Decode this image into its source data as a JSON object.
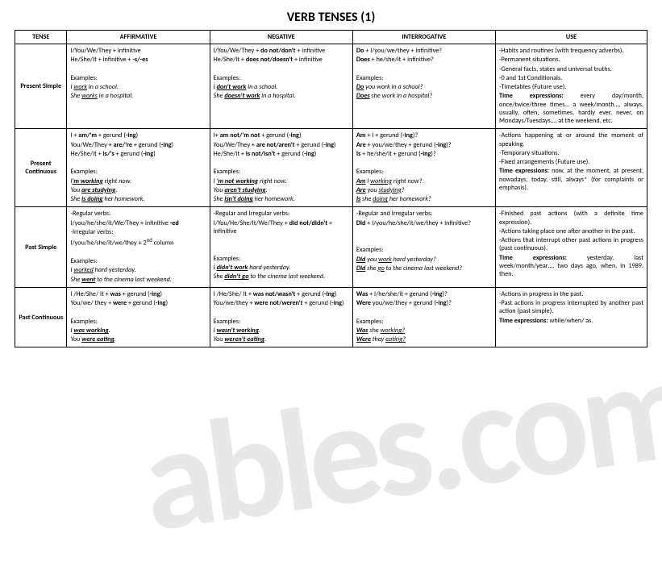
{
  "title": "VERB TENSES (1)",
  "watermark": "ables.com",
  "headers": [
    "TENSE",
    "AFFIRMATIVE",
    "NEGATIVE",
    "INTERROGATIVE",
    "USE"
  ],
  "rows": [
    {
      "tense": "Present Simple",
      "aff": {
        "l1a": "I/You/We/They + infinitive",
        "l2a": "He/She/It + infinitive + ",
        "l2b": "-s/-es",
        "ex": "Examples:",
        "e1a": "I ",
        "e1b": "work",
        "e1c": " in a school.",
        "e2a": "She ",
        "e2b": "works",
        "e2c": " in a hospital."
      },
      "neg": {
        "l1a": "I/You/We/They + ",
        "l1b": "do not/don't",
        "l1c": " + infinitive",
        "l2a": "He/She/It + ",
        "l2b": "does not/doesn't",
        "l2c": " + infinitive",
        "ex": "Examples:",
        "e1a": "I ",
        "e1b": "don't work",
        "e1c": " in a school.",
        "e2a": "She ",
        "e2b": "doesn't work",
        "e2c": " in a hospital."
      },
      "int": {
        "l1a": "Do",
        "l1b": " + I/you/we/they + infinitive?",
        "l2a": "Does",
        "l2b": " + he/she/it + infinitive?",
        "ex": "Examples:",
        "e1a": "Do",
        "e1b": " you work in a school?",
        "e2a": "Does",
        "e2b": " she work in a hospital?"
      },
      "use": {
        "u1": "-Habits and routines (with frequency adverbs).",
        "u2": "-Permanent situations.",
        "u3": "-General facts, states and universal truths.",
        "u4": "-0 and 1st Conditionals.",
        "u5": "-Timetables (Future use).",
        "t1": "Time expressions:",
        "t2": " every day/month, once/twice/three times… a week/month…, always, usually, often, sometimes, hardly ever, never, on Mondays/Tuesdays…, at the weekend, etc."
      }
    },
    {
      "tense": "Present Continuous",
      "aff": {
        "l1a": "I + ",
        "l1b": "am/'m",
        "l1c": " + gerund (",
        "l1d": "-ing",
        "l1e": ")",
        "l2a": "You/We/They + ",
        "l2b": "are/'re",
        "l2c": " + gerund (",
        "l2d": "-ing",
        "l2e": ")",
        "l3a": "He/She/It + ",
        "l3b": "is/'s",
        "l3c": " + gerund (",
        "l3d": "-ing",
        "l3e": ")",
        "ex": "Examples:",
        "e1a": "I",
        "e1b": "'m working",
        "e1c": " right now.",
        "e2a": "You ",
        "e2b": "are studying",
        "e2c": ".",
        "e3a": "She ",
        "e3b": "is doing",
        "e3c": " her homework."
      },
      "neg": {
        "l1a": "I+ ",
        "l1b": "am not/'m not",
        "l1c": " + gerund (",
        "l1d": "-ing",
        "l1e": ")",
        "l2a": "You/We/They + ",
        "l2b": "are  not/aren't",
        "l2c": " + gerund (",
        "l2d": "-ing",
        "l2e": ")",
        "l3a": "He/She/It + ",
        "l3b": "is not/isn't",
        "l3c": " + gerund (",
        "l3d": "-ing",
        "l3e": ")",
        "ex": "Examples:",
        "e1a": "I ",
        "e1b": "'m not working",
        "e1c": " right now.",
        "e2a": "You ",
        "e2b": "aren't studying",
        "e2c": ".",
        "e3a": "She ",
        "e3b": "isn't doing",
        "e3c": " her homework."
      },
      "int": {
        "l1a": "Am",
        "l1b": " + I + gerund (",
        "l1c": "-ing",
        "l1d": ")?",
        "l2a": "Are",
        "l2b": " + you/we/they + gerund  (",
        "l2c": "-ing",
        "l2d": ")?",
        "l3a": "Is",
        "l3b": " + he/she/it + gerund (",
        "l3c": "-ing",
        "l3d": ")?",
        "ex": "Examples:",
        "e1a": "Am",
        "e1b": " I ",
        "e1c": "working",
        "e1d": " right now?",
        "e2a": "Are",
        "e2b": " you ",
        "e2c": "studying",
        "e2d": "?",
        "e3a": "Is",
        "e3b": " she ",
        "e3c": "doing",
        "e3d": " her homework?"
      },
      "use": {
        "u1": "-Actions happening at or around the moment of speaking.",
        "u2": "-Temporary situations.",
        "u3": "-Fixed arrangements (Future use).",
        "t1": "Time expressions:",
        "t2": " now, at the moment, at present, nowadays, today, still, always* (for complaints or emphasis)."
      }
    },
    {
      "tense": "Past Simple",
      "aff": {
        "l1": "-Regular verbs:",
        "l2a": "I/you/he/she/it/We/They + infinitive ",
        "l2b": "-ed",
        "l3": "-Irregular verbs:",
        "l4a": "I/you/he/she/it/we/they + 2",
        "l4b": "nd",
        "l4c": " column",
        "ex": "Examples:",
        "e1a": "I ",
        "e1b": "worked",
        "e1c": " hard yesterday.",
        "e2a": "She ",
        "e2b": "went",
        "e2c": " to the cinema last weekend."
      },
      "neg": {
        "l1": "-Regular and Irregular verbs:",
        "l2a": "I/You/He/She/It/We/They + ",
        "l2b": "did not/didn't",
        "l2c": " + infinitive",
        "ex": "Examples:",
        "e1a": "I ",
        "e1b": "didn't work",
        "e1c": " hard yesterday.",
        "e2a": "She ",
        "e2b": "didn't go",
        "e2c": " to the cinema last weekend."
      },
      "int": {
        "l1": "-Regular and Irregular verbs:",
        "l2a": "Did",
        "l2b": " + I/you/he/she/it/we/they + infinitive?",
        "ex": "Examples:",
        "e1a": "Did",
        "e1b": " you ",
        "e1c": "work",
        "e1d": " hard yesterday?",
        "e2a": "Did",
        "e2b": " she ",
        "e2c": "go",
        "e2d": " to the cinema last weekend?"
      },
      "use": {
        "u1": "-Finished past actions (with a definite time expression).",
        "u2": "-Actions taking place one after another in the past.",
        "u3": "-Actions that interrupt other past actions in progress (past continuous).",
        "t1": "Time expressions:",
        "t2": " yesterday, last week/month/year…, two days ago, when, in 1989, then."
      }
    },
    {
      "tense": "Past Continuous",
      "aff": {
        "l1a": "I /He/She/ It + ",
        "l1b": "was",
        "l1c": " + gerund (",
        "l1d": "-ing",
        "l1e": ")",
        "l2a": "You/we/ they + ",
        "l2b": "were",
        "l2c": " + gerund (",
        "l2d": "-ing",
        "l2e": ")",
        "ex": "Examples:",
        "e1a": "I ",
        "e1b": "was working",
        "e1c": ".",
        "e2a": "You ",
        "e2b": "were eating",
        "e2c": "."
      },
      "neg": {
        "l1a": "I /He/She/ It + ",
        "l1b": "was not/wasn't",
        "l1c": " + gerund (",
        "l1d": "-ing",
        "l1e": ")",
        "l2a": "You/we/they + ",
        "l2b": "were not/weren't",
        "l2c": " + gerund (",
        "l2d": "-ing",
        "l2e": ")",
        "ex": "Examples:",
        "e1a": "I ",
        "e1b": "wasn't working",
        "e1c": ".",
        "e2a": "You ",
        "e2b": "weren't eating",
        "e2c": "."
      },
      "int": {
        "l1a": "Was",
        "l1b": " + I/he/she/it + gerund (",
        "l1c": "-ing",
        "l1d": ")?",
        "l2a": "Were",
        "l2b": " you/we/they + gerund (",
        "l2c": "-ing",
        "l2d": ")?",
        "ex": "Examples:",
        "e1a": "Was",
        "e1b": " she ",
        "e1c": "working?",
        "e2a": "Were",
        "e2b": " they ",
        "e2c": "eating?"
      },
      "use": {
        "u1": "-Actions in progress in the past.",
        "u2": "-Past actions in progress interrupted by another past action (past simple).",
        "t1": "Time expressions:",
        "t2": " while/when/ as."
      }
    }
  ]
}
